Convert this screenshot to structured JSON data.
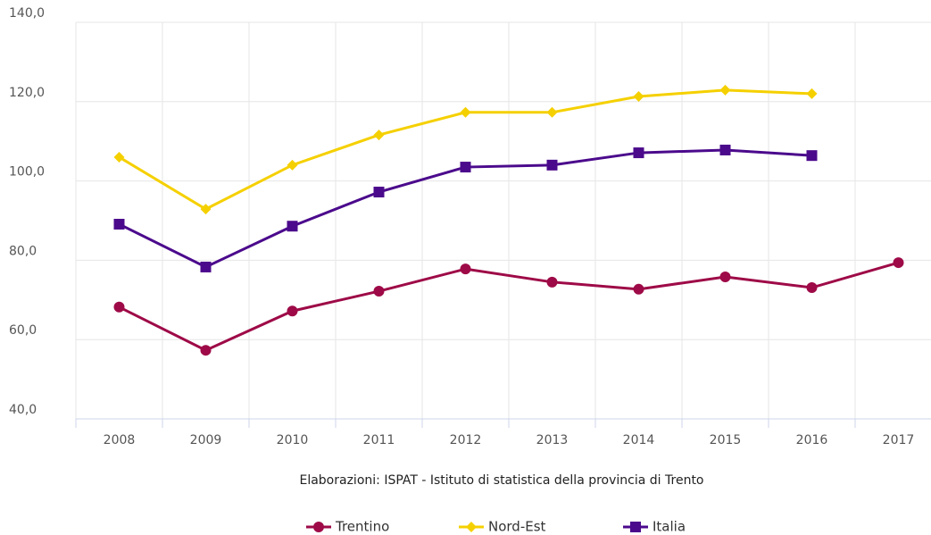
{
  "chart_data": {
    "type": "line",
    "caption": "Elaborazioni: ISPAT - Istituto di statistica della provincia di Trento",
    "categories": [
      "2008",
      "2009",
      "2010",
      "2011",
      "2012",
      "2013",
      "2014",
      "2015",
      "2016",
      "2017"
    ],
    "series": [
      {
        "name": "Trentino",
        "color": "#9e0a47",
        "marker": "circle",
        "values": [
          68.2,
          57.3,
          67.2,
          72.2,
          77.8,
          74.5,
          72.7,
          75.8,
          73.1,
          79.4
        ]
      },
      {
        "name": "Nord-Est",
        "color": "#f5d000",
        "marker": "diamond",
        "values": [
          106.0,
          92.9,
          104.0,
          111.6,
          117.3,
          117.3,
          121.3,
          122.9,
          122.0,
          null
        ]
      },
      {
        "name": "Italia",
        "color": "#4b0a8c",
        "marker": "square",
        "values": [
          89.1,
          78.3,
          88.6,
          97.2,
          103.5,
          104.0,
          107.1,
          107.8,
          106.4,
          null
        ]
      }
    ],
    "ylim": [
      40,
      140
    ],
    "yticks": [
      {
        "value": 40,
        "label": "40,0"
      },
      {
        "value": 60,
        "label": "60,0"
      },
      {
        "value": 80,
        "label": "80,0"
      },
      {
        "value": 100,
        "label": "100,0"
      },
      {
        "value": 120,
        "label": "120,0"
      },
      {
        "value": 140,
        "label": "140,0"
      }
    ],
    "grid": true
  }
}
